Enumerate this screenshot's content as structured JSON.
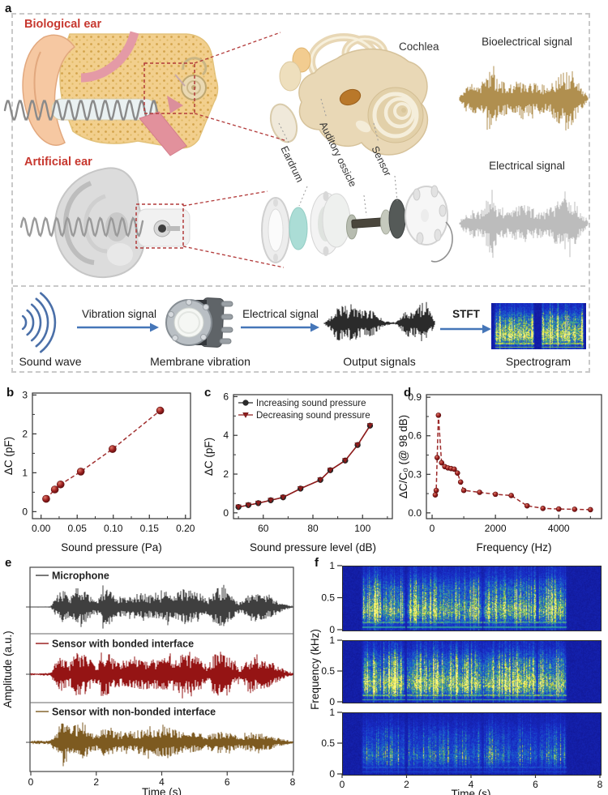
{
  "panel_labels": {
    "a": "a",
    "b": "b",
    "c": "c",
    "d": "d",
    "e": "e",
    "f": "f"
  },
  "colors": {
    "accent_red_label": "#c7382f",
    "dark_red": "#8f1d1d",
    "mic_gray": "#3f3f3f",
    "bonded_red": "#951414",
    "nonbonded_olive": "#7d5a20",
    "bio_tan": "#b08f4f",
    "elec_gray": "#bcbcbc",
    "output_black": "#2b2b2b",
    "arrow_blue": "#4576b8",
    "sound_wave_blue": "#4a6fa8",
    "spectrogram_blue": "#1a22a8",
    "spectrogram_yellow": "#e8df3e"
  },
  "panel_a": {
    "biological_ear": "Biological ear",
    "artificial_ear": "Artificial ear",
    "cochlea": "Cochlea",
    "eardrum": "Eardrum",
    "auditory_ossicle": "Auditory ossicle",
    "sensor": "Sensor",
    "bioelectrical_signal": "Bioelectrical signal",
    "electrical_signal": "Electrical signal",
    "flow": {
      "sound_wave": "Sound wave",
      "vibration_signal": "Vibration signal",
      "membrane_vibration": "Membrane vibration",
      "electrical_signal": "Electrical signal",
      "output_signals": "Output signals",
      "stft": "STFT",
      "spectrogram": "Spectrogram"
    },
    "signal_envelopes": {
      "bioelectrical": [
        0.06,
        0.3,
        0.38,
        0.32,
        0.5,
        0.95,
        0.45,
        0.4,
        0.35,
        0.45,
        0.5,
        0.42,
        0.38,
        0.35,
        0.4,
        0.55,
        0.65,
        0.75,
        0.6,
        0.3,
        0.08
      ],
      "electrical": [
        0.05,
        0.28,
        0.36,
        0.3,
        0.48,
        0.98,
        0.42,
        0.38,
        0.33,
        0.42,
        0.48,
        0.4,
        0.36,
        0.33,
        0.38,
        0.52,
        0.62,
        0.72,
        0.58,
        0.28,
        0.07
      ],
      "output": [
        0.03,
        0.25,
        0.6,
        0.75,
        0.55,
        0.7,
        0.62,
        0.5,
        0.58,
        0.45,
        0.25,
        0.1,
        0.05,
        0.05,
        0.28,
        0.6,
        0.45,
        0.65,
        0.9,
        0.55,
        0.15
      ]
    },
    "mini_spectrogram_bursts": [
      [
        0.35,
        3.5
      ],
      [
        4.3,
        7.7
      ]
    ]
  },
  "chart_data": [
    {
      "id": "b",
      "type": "line",
      "xlabel": "Sound pressure (Pa)",
      "ylabel": "ΔC (pF)",
      "xlim": [
        -0.012,
        0.207
      ],
      "ylim": [
        -0.18,
        3.05
      ],
      "xticks": [
        {
          "v": 0,
          "l": "0.00"
        },
        {
          "v": 0.05,
          "l": "0.05"
        },
        {
          "v": 0.1,
          "l": "0.10"
        },
        {
          "v": 0.15,
          "l": "0.15"
        },
        {
          "v": 0.2,
          "l": "0.20"
        }
      ],
      "yticks": [
        {
          "v": 0,
          "l": "0"
        },
        {
          "v": 1,
          "l": "1"
        },
        {
          "v": 2,
          "l": "2"
        },
        {
          "v": 3,
          "l": "3"
        }
      ],
      "xminor": [
        0.025,
        0.075,
        0.125,
        0.175
      ],
      "yminor": [
        0.5,
        1.5,
        2.5
      ],
      "series": [
        {
          "name": "ΔC",
          "marker": "sphere",
          "line": "dashed",
          "color": "#a23232",
          "x": [
            0.007,
            0.019,
            0.027,
            0.055,
            0.099,
            0.165
          ],
          "y": [
            0.33,
            0.57,
            0.7,
            1.03,
            1.61,
            2.6
          ]
        }
      ]
    },
    {
      "id": "c",
      "type": "line",
      "xlabel": "Sound pressure level (dB)",
      "ylabel": "ΔC (pF)",
      "xlim": [
        48,
        112
      ],
      "ylim": [
        -0.3,
        6.1
      ],
      "xticks": [
        {
          "v": 60,
          "l": "60"
        },
        {
          "v": 80,
          "l": "80"
        },
        {
          "v": 100,
          "l": "100"
        }
      ],
      "yticks": [
        {
          "v": 0,
          "l": "0"
        },
        {
          "v": 2,
          "l": "2"
        },
        {
          "v": 4,
          "l": "4"
        },
        {
          "v": 6,
          "l": "6"
        }
      ],
      "xminor": [
        50,
        70,
        90,
        110
      ],
      "yminor": [
        1,
        3,
        5
      ],
      "legend": [
        {
          "label": "Increasing sound pressure",
          "marker": "circle",
          "color": "#2b2b2b"
        },
        {
          "label": "Decreasing sound pressure",
          "marker": "triangle",
          "color": "#8f1d1d"
        }
      ],
      "series": [
        {
          "name": "Increasing sound pressure",
          "marker": "circle",
          "line": "solid",
          "color": "#7e1f1f",
          "x": [
            50,
            54,
            58,
            63,
            68,
            75,
            83,
            87,
            93,
            98,
            103
          ],
          "y": [
            0.3,
            0.4,
            0.5,
            0.65,
            0.8,
            1.25,
            1.7,
            2.2,
            2.7,
            3.5,
            4.5
          ]
        },
        {
          "name": "Decreasing sound pressure",
          "marker": "triangle",
          "line": "solid",
          "color": "#8f1d1d",
          "x": [
            50,
            54,
            58,
            63,
            68,
            75,
            83,
            87,
            93,
            98,
            103
          ],
          "y": [
            0.3,
            0.4,
            0.5,
            0.65,
            0.8,
            1.25,
            1.7,
            2.2,
            2.7,
            3.5,
            4.5
          ]
        }
      ]
    },
    {
      "id": "d",
      "type": "line",
      "xlabel": "Frequency (Hz)",
      "ylabel": "ΔC/C₀ (@ 98 dB)",
      "xlim": [
        -180,
        5350
      ],
      "ylim": [
        -0.045,
        0.92
      ],
      "xticks": [
        {
          "v": 0,
          "l": "0"
        },
        {
          "v": 2000,
          "l": "2000"
        },
        {
          "v": 4000,
          "l": "4000"
        }
      ],
      "yticks": [
        {
          "v": 0,
          "l": "0.0"
        },
        {
          "v": 0.3,
          "l": "0.3"
        },
        {
          "v": 0.6,
          "l": "0.6"
        },
        {
          "v": 0.9,
          "l": "0.9"
        }
      ],
      "xminor": [
        1000,
        3000,
        5000
      ],
      "yminor": [
        0.15,
        0.45,
        0.75
      ],
      "series": [
        {
          "name": "ΔC/C0",
          "marker": "sphere",
          "line": "dashed",
          "color": "#9c2a2a",
          "x": [
            100,
            130,
            160,
            200,
            300,
            400,
            500,
            600,
            700,
            800,
            900,
            1000,
            1500,
            2000,
            2500,
            3000,
            3500,
            4000,
            4500,
            5000
          ],
          "y": [
            0.14,
            0.175,
            0.43,
            0.76,
            0.39,
            0.36,
            0.35,
            0.345,
            0.34,
            0.31,
            0.24,
            0.175,
            0.16,
            0.145,
            0.135,
            0.055,
            0.035,
            0.03,
            0.028,
            0.025
          ]
        }
      ]
    },
    {
      "id": "e",
      "type": "waveform",
      "xlabel": "Time (s)",
      "ylabel": "Amplitude (a.u.)",
      "xlim": [
        0,
        8
      ],
      "xticks": [
        {
          "v": 0,
          "l": "0"
        },
        {
          "v": 2,
          "l": "2"
        },
        {
          "v": 4,
          "l": "4"
        },
        {
          "v": 6,
          "l": "6"
        },
        {
          "v": 8,
          "l": "8"
        }
      ],
      "series": [
        {
          "name": "Microphone",
          "color": "#3f3f3f",
          "envelope": [
            0.02,
            0.02,
            0.02,
            0.03,
            0.5,
            0.78,
            0.4,
            0.88,
            0.85,
            0.55,
            0.3,
            0.8,
            0.72,
            0.5,
            0.45,
            0.52,
            0.55,
            0.6,
            0.55,
            0.52,
            0.62,
            0.7,
            0.55,
            0.78,
            0.72,
            0.68,
            0.58,
            0.3,
            0.75,
            0.85,
            0.78,
            0.45,
            0.22,
            0.5,
            0.65,
            0.6,
            0.5,
            0.4,
            0.25,
            0.12,
            0.04
          ]
        },
        {
          "name": "Sensor with bonded interface",
          "color": "#951414",
          "envelope": [
            0.05,
            0.05,
            0.05,
            0.06,
            0.55,
            0.82,
            0.45,
            0.9,
            0.88,
            0.6,
            0.35,
            0.84,
            0.78,
            0.55,
            0.5,
            0.56,
            0.6,
            0.64,
            0.6,
            0.56,
            0.66,
            0.74,
            0.6,
            0.82,
            0.76,
            0.72,
            0.62,
            0.35,
            0.8,
            0.88,
            0.82,
            0.5,
            0.26,
            0.55,
            0.7,
            0.64,
            0.54,
            0.44,
            0.28,
            0.14,
            0.05
          ]
        },
        {
          "name": "Sensor with non-bonded interface",
          "color": "#7d5a20",
          "envelope": [
            0.07,
            0.07,
            0.07,
            0.08,
            0.5,
            0.95,
            0.55,
            0.72,
            0.66,
            0.48,
            0.3,
            0.58,
            0.52,
            0.4,
            0.36,
            0.4,
            0.44,
            0.5,
            0.55,
            0.5,
            0.58,
            0.64,
            0.5,
            0.44,
            0.4,
            0.38,
            0.34,
            0.26,
            0.42,
            0.46,
            0.4,
            0.32,
            0.22,
            0.36,
            0.4,
            0.36,
            0.3,
            0.26,
            0.18,
            0.1,
            0.05
          ]
        }
      ]
    },
    {
      "id": "f",
      "type": "spectrogram",
      "xlabel": "Time (s)",
      "ylabel": "Frequency (kHz)",
      "xticks": [
        {
          "v": 0,
          "l": "0"
        },
        {
          "v": 2,
          "l": "2"
        },
        {
          "v": 4,
          "l": "4"
        },
        {
          "v": 6,
          "l": "6"
        },
        {
          "v": 8,
          "l": "8"
        }
      ],
      "row_yticks": [
        {
          "v": 1,
          "l": "1"
        },
        {
          "v": 0.5,
          "l": "0.5"
        },
        {
          "v": 0,
          "l": "0"
        }
      ],
      "bursts": [
        [
          0.65,
          1.15
        ],
        [
          1.25,
          1.85
        ],
        [
          2.05,
          2.95
        ],
        [
          3.0,
          4.25
        ],
        [
          4.4,
          5.15
        ],
        [
          5.25,
          5.95
        ],
        [
          6.1,
          6.85
        ]
      ],
      "rows": [
        {
          "name": "Microphone",
          "intensity": 1.0
        },
        {
          "name": "Sensor with bonded interface",
          "intensity": 1.15
        },
        {
          "name": "Sensor with non-bonded interface",
          "intensity": 0.5
        }
      ]
    }
  ]
}
